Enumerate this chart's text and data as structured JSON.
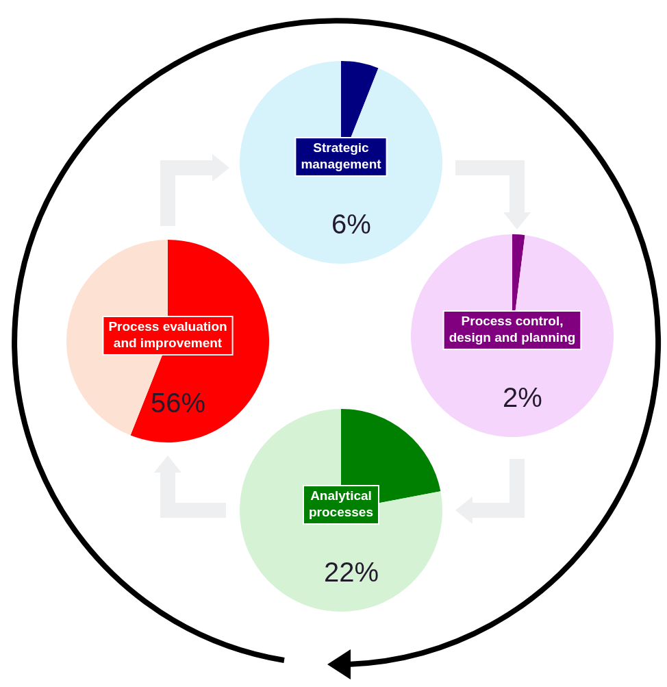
{
  "chart_data": [
    {
      "type": "pie",
      "categories": [
        "Strategic management",
        null
      ],
      "values": [
        6,
        94
      ],
      "colors": [
        "#000080",
        "#d6f3fc"
      ],
      "annotations": [
        "6%"
      ]
    },
    {
      "type": "pie",
      "categories": [
        "Process evaluation and improvement",
        null
      ],
      "values": [
        56,
        44
      ],
      "colors": [
        "#ff0000",
        "#fde2d3"
      ],
      "annotations": [
        "56%"
      ]
    },
    {
      "type": "pie",
      "categories": [
        "Process control, design and planning",
        null
      ],
      "values": [
        2,
        98
      ],
      "colors": [
        "#800080",
        "#f5d5fb"
      ],
      "annotations": [
        "2%"
      ]
    },
    {
      "type": "pie",
      "categories": [
        "Analytical processes",
        null
      ],
      "values": [
        22,
        78
      ],
      "colors": [
        "#008000",
        "#d5f2d5"
      ],
      "annotations": [
        "22%"
      ]
    }
  ]
}
